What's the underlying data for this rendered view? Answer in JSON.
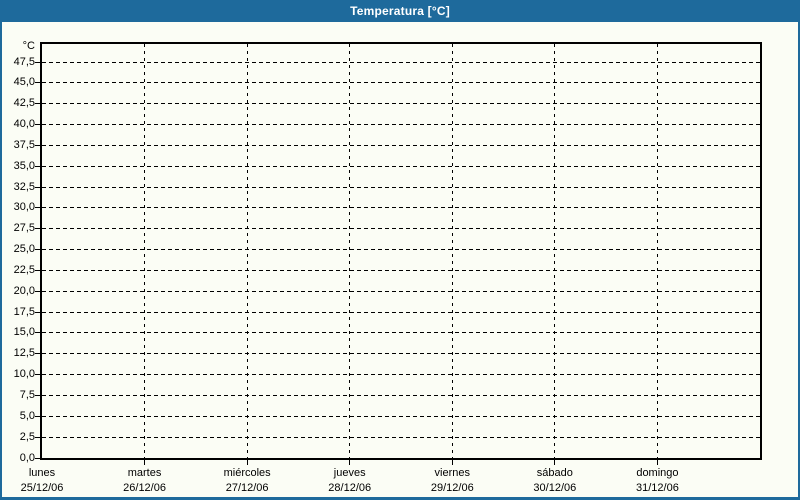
{
  "window": {
    "title": "Temperatura [°C]",
    "colors": {
      "frame_blue": "#1e6a9c",
      "background": "#fbfdf5",
      "line": "#000000",
      "title_text": "#ffffff"
    }
  },
  "chart_data": {
    "type": "line",
    "title": "Temperatura [°C]",
    "ylabel": "°C",
    "xlabel": "",
    "legend": "none",
    "grid": "dashed",
    "y_axis": {
      "unit": "°C",
      "range": [
        0,
        47.5
      ],
      "tick_step": 2.5,
      "ticks": [
        {
          "value": 0,
          "label": "0,0"
        },
        {
          "value": 2.5,
          "label": "2,5"
        },
        {
          "value": 5,
          "label": "5,0"
        },
        {
          "value": 7.5,
          "label": "7,5"
        },
        {
          "value": 10,
          "label": "10,0"
        },
        {
          "value": 12.5,
          "label": "12,5"
        },
        {
          "value": 15,
          "label": "15,0"
        },
        {
          "value": 17.5,
          "label": "17,5"
        },
        {
          "value": 20,
          "label": "20,0"
        },
        {
          "value": 22.5,
          "label": "22,5"
        },
        {
          "value": 25,
          "label": "25,0"
        },
        {
          "value": 27.5,
          "label": "27,5"
        },
        {
          "value": 30,
          "label": "30,0"
        },
        {
          "value": 32.5,
          "label": "32,5"
        },
        {
          "value": 35,
          "label": "35,0"
        },
        {
          "value": 37.5,
          "label": "37,5"
        },
        {
          "value": 40,
          "label": "40,0"
        },
        {
          "value": 42.5,
          "label": "42,5"
        },
        {
          "value": 45,
          "label": "45,0"
        },
        {
          "value": 47.5,
          "label": "47,5"
        }
      ]
    },
    "x_axis": {
      "categories": [
        {
          "day": "lunes",
          "date": "25/12/06"
        },
        {
          "day": "martes",
          "date": "26/12/06"
        },
        {
          "day": "miércoles",
          "date": "27/12/06"
        },
        {
          "day": "jueves",
          "date": "28/12/06"
        },
        {
          "day": "viernes",
          "date": "29/12/06"
        },
        {
          "day": "sábado",
          "date": "30/12/06"
        },
        {
          "day": "domingo",
          "date": "31/12/06"
        }
      ]
    },
    "series": []
  }
}
